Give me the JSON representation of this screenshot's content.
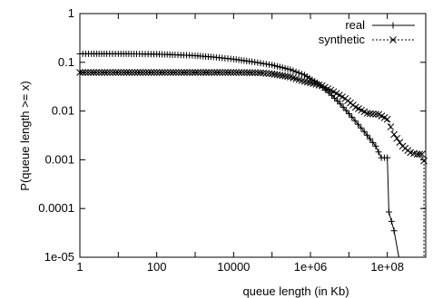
{
  "chart_data": {
    "type": "line",
    "title": "",
    "xlabel": "queue length (in Kb)",
    "ylabel": "P(queue length >= x)",
    "xscale": "log",
    "yscale": "log",
    "xlim": [
      1,
      1000000000
    ],
    "ylim": [
      1e-05,
      1
    ],
    "x_ticks": [
      {
        "value": 1,
        "label": "1"
      },
      {
        "value": 100,
        "label": "100"
      },
      {
        "value": 10000,
        "label": "10000"
      },
      {
        "value": 1000000,
        "label": "1e+06"
      },
      {
        "value": 100000000,
        "label": "1e+08"
      }
    ],
    "y_ticks": [
      {
        "value": 1,
        "label": "1"
      },
      {
        "value": 0.1,
        "label": "0.1"
      },
      {
        "value": 0.01,
        "label": "0.01"
      },
      {
        "value": 0.001,
        "label": "0.001"
      },
      {
        "value": 0.0001,
        "label": "0.0001"
      },
      {
        "value": 1e-05,
        "label": "1e-05"
      }
    ],
    "grid": false,
    "legend_position": "top-right",
    "series": [
      {
        "name": "real",
        "line_style": "solid",
        "marker": "plus",
        "points": [
          [
            1,
            0.15
          ],
          [
            2,
            0.15
          ],
          [
            5,
            0.15
          ],
          [
            10,
            0.15
          ],
          [
            30,
            0.149
          ],
          [
            100,
            0.147
          ],
          [
            300,
            0.143
          ],
          [
            1000,
            0.137
          ],
          [
            3000,
            0.128
          ],
          [
            10000,
            0.116
          ],
          [
            30000,
            0.103
          ],
          [
            100000,
            0.088
          ],
          [
            300000,
            0.071
          ],
          [
            700000,
            0.055
          ],
          [
            1500000,
            0.038
          ],
          [
            3000000,
            0.024
          ],
          [
            6000000,
            0.014
          ],
          [
            12000000,
            0.0075
          ],
          [
            25000000,
            0.0038
          ],
          [
            50000000,
            0.0019
          ],
          [
            70000000,
            0.0011
          ],
          [
            100000000,
            0.0011
          ],
          [
            110000000,
            8.5e-05
          ],
          [
            150000000,
            3.5e-05
          ],
          [
            200000000,
            1e-05
          ]
        ]
      },
      {
        "name": "synthetic",
        "line_style": "dashed",
        "marker": "cross",
        "points": [
          [
            1,
            0.062
          ],
          [
            10,
            0.062
          ],
          [
            100,
            0.062
          ],
          [
            1000,
            0.062
          ],
          [
            10000,
            0.062
          ],
          [
            50000,
            0.061
          ],
          [
            100000,
            0.058
          ],
          [
            300000,
            0.05
          ],
          [
            600000,
            0.042
          ],
          [
            1000000,
            0.038
          ],
          [
            2000000,
            0.033
          ],
          [
            4000000,
            0.025
          ],
          [
            8000000,
            0.018
          ],
          [
            15000000,
            0.012
          ],
          [
            30000000,
            0.009
          ],
          [
            60000000,
            0.0085
          ],
          [
            100000000,
            0.0068
          ],
          [
            150000000,
            0.0033
          ],
          [
            250000000,
            0.0019
          ],
          [
            400000000,
            0.0014
          ],
          [
            600000000,
            0.0013
          ],
          [
            800000000,
            0.0013
          ],
          [
            900000000,
            0.00095
          ],
          [
            900000000,
            1e-05
          ]
        ]
      }
    ]
  }
}
